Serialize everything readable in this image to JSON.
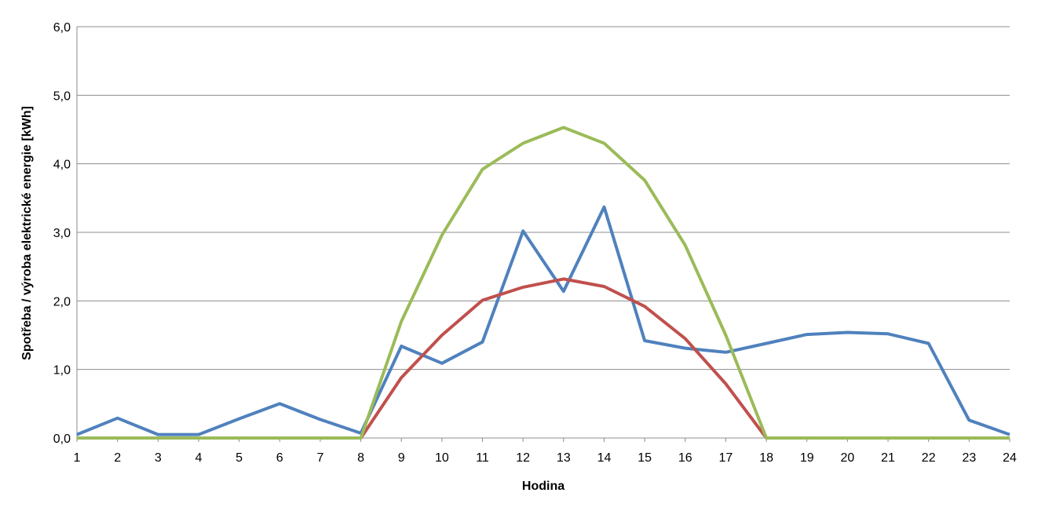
{
  "chart_data": {
    "type": "line",
    "title": "",
    "xlabel": "Hodina",
    "ylabel": "Spotřeba / výroba elektrické energie [kWh]",
    "x": [
      1,
      2,
      3,
      4,
      5,
      6,
      7,
      8,
      9,
      10,
      11,
      12,
      13,
      14,
      15,
      16,
      17,
      18,
      19,
      20,
      21,
      22,
      23,
      24
    ],
    "x_tick_labels": [
      "1",
      "2",
      "3",
      "4",
      "5",
      "6",
      "7",
      "8",
      "9",
      "10",
      "11",
      "12",
      "13",
      "14",
      "15",
      "16",
      "17",
      "18",
      "19",
      "20",
      "21",
      "22",
      "23",
      "24"
    ],
    "ylim": [
      0,
      6
    ],
    "y_ticks": [
      0,
      1,
      2,
      3,
      4,
      5,
      6
    ],
    "y_tick_labels": [
      "0,0",
      "1,0",
      "2,0",
      "3,0",
      "4,0",
      "5,0",
      "6,0"
    ],
    "grid": true,
    "legend": "none",
    "series": [
      {
        "color": "#4f81bd",
        "values": [
          0.05,
          0.29,
          0.05,
          0.05,
          0.28,
          0.5,
          0.27,
          0.07,
          1.34,
          1.09,
          1.4,
          3.02,
          2.14,
          3.37,
          1.42,
          1.31,
          1.25,
          1.38,
          1.51,
          1.54,
          1.52,
          1.38,
          0.26,
          0.05
        ]
      },
      {
        "color": "#c0504d",
        "values": [
          0,
          0,
          0,
          0,
          0,
          0,
          0,
          0,
          0.88,
          1.5,
          2.01,
          2.2,
          2.32,
          2.21,
          1.92,
          1.45,
          0.79,
          0,
          0,
          0,
          0,
          0,
          0,
          0
        ]
      },
      {
        "color": "#9bbb59",
        "values": [
          0,
          0,
          0,
          0,
          0,
          0,
          0,
          0,
          1.7,
          2.96,
          3.92,
          4.3,
          4.53,
          4.3,
          3.76,
          2.81,
          1.5,
          0,
          0,
          0,
          0,
          0,
          0,
          0
        ]
      }
    ]
  }
}
